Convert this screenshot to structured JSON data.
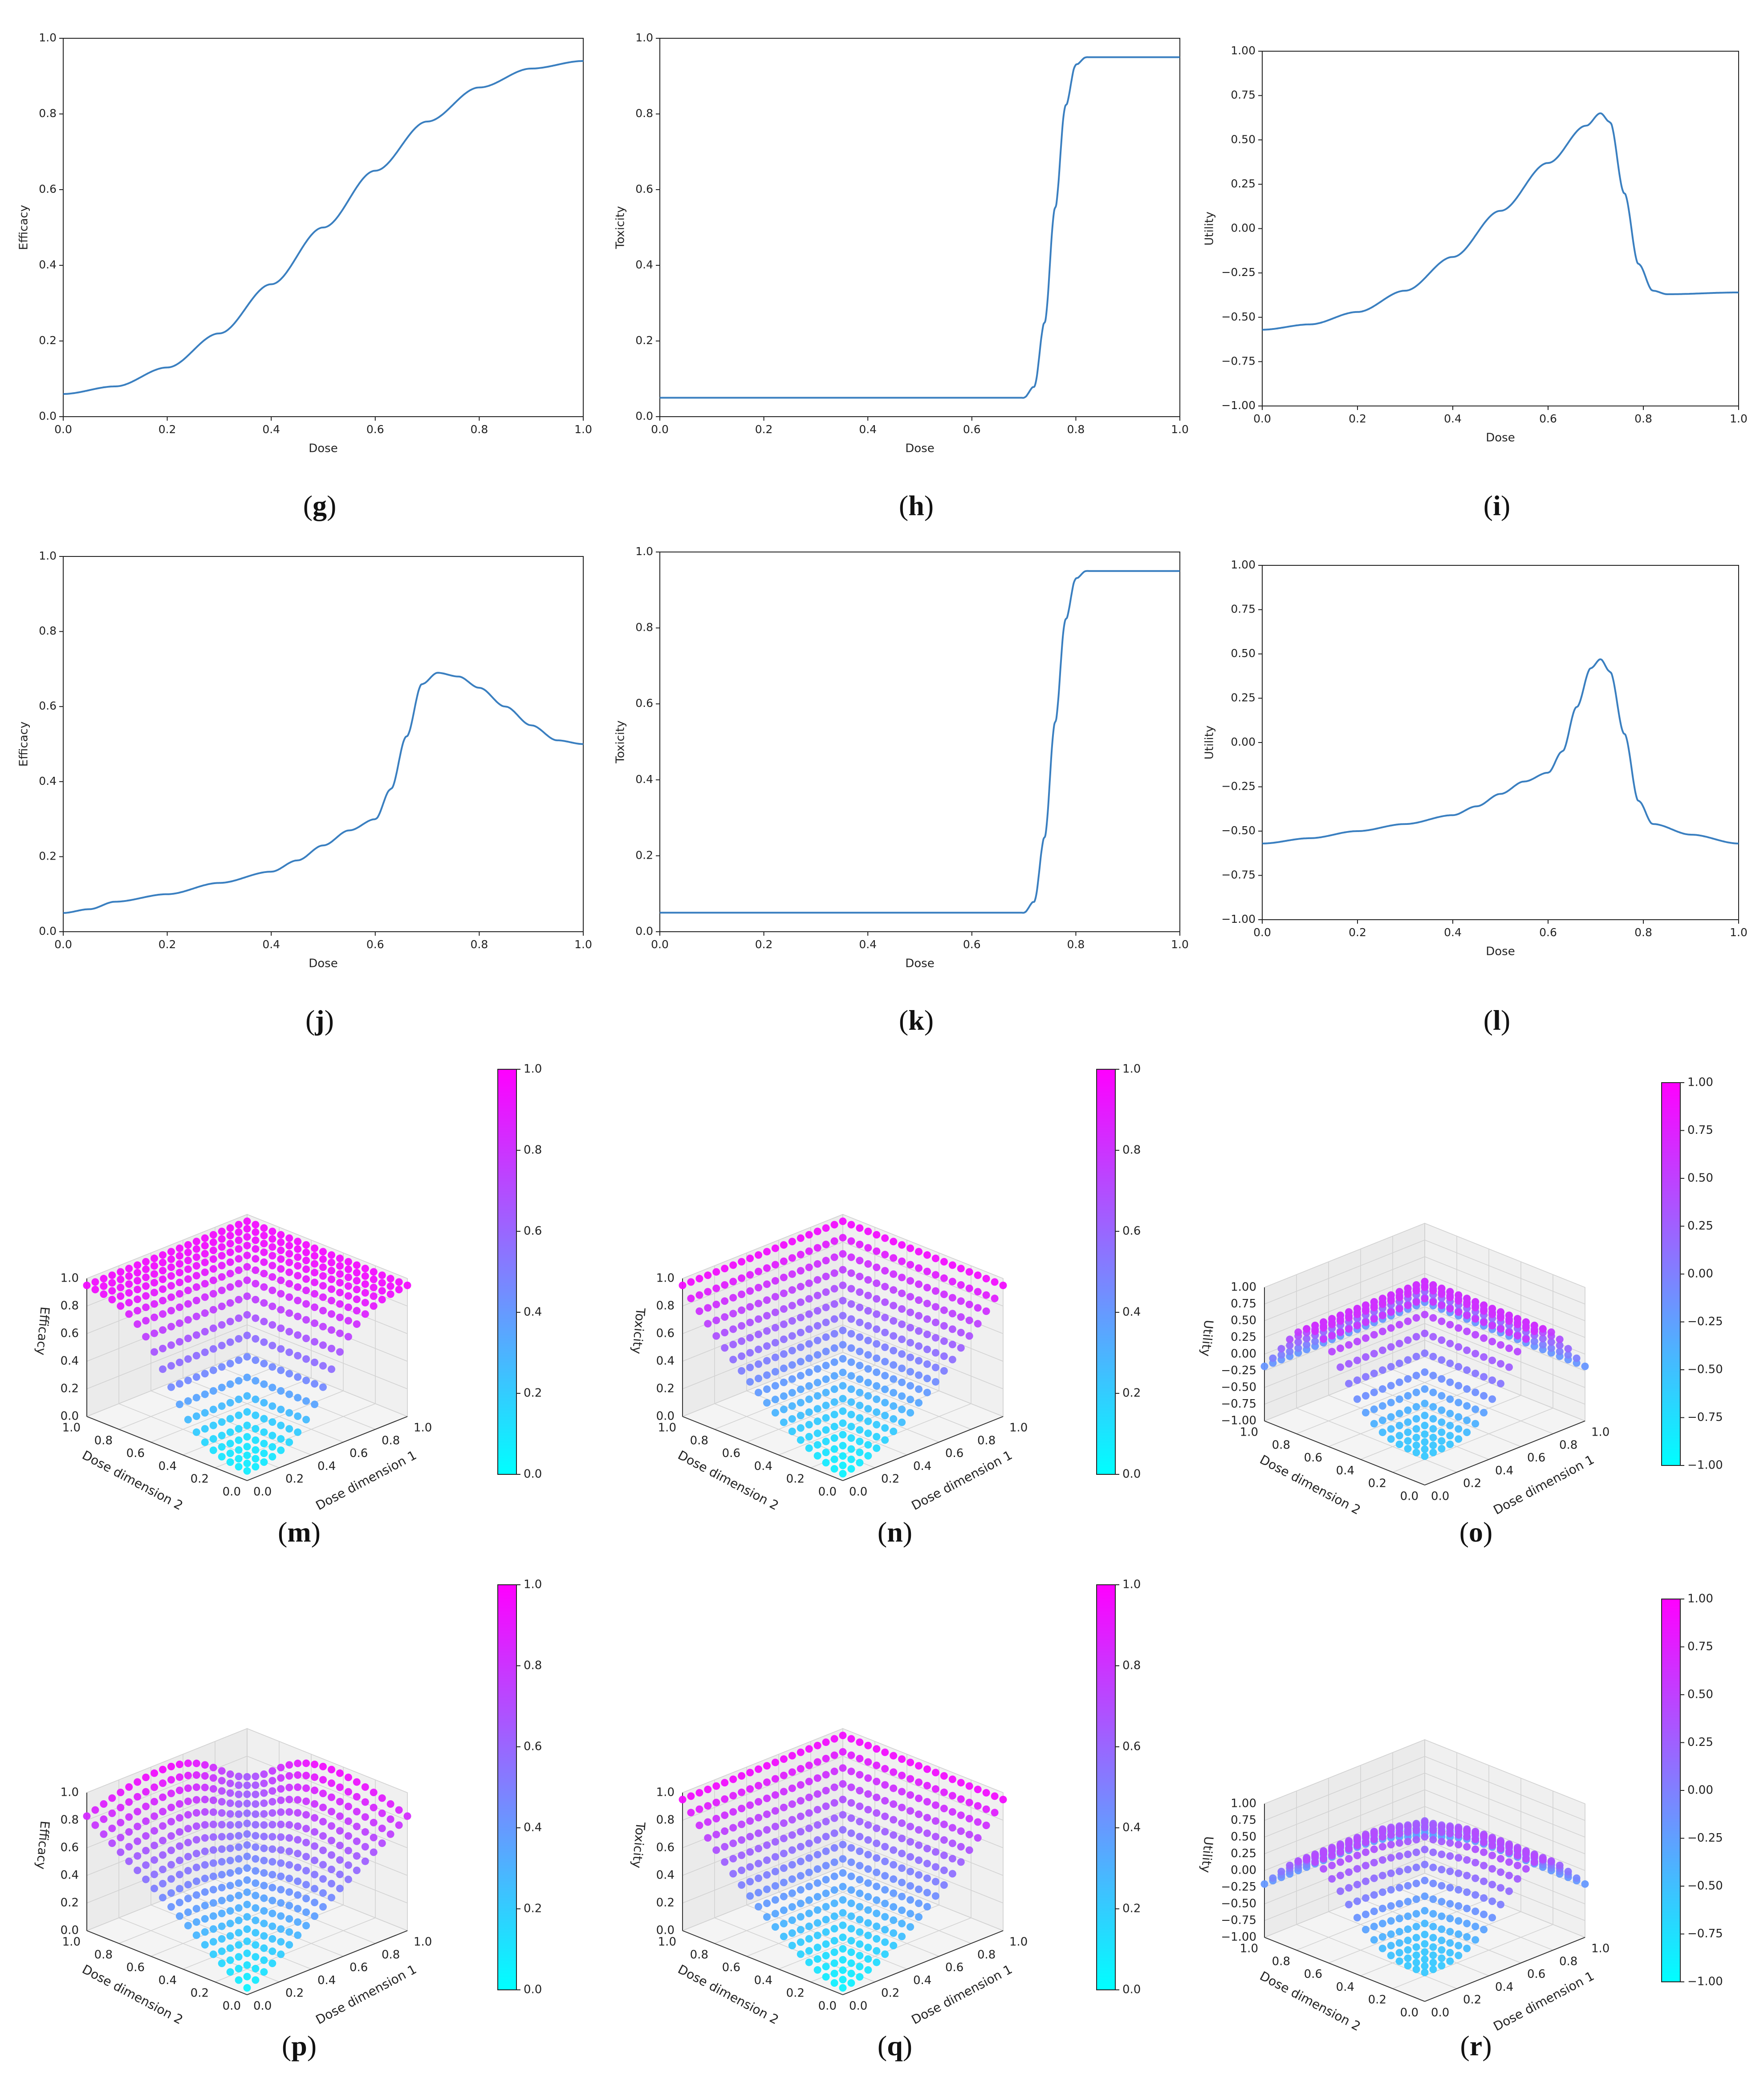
{
  "figure": {
    "panels_2d": [
      {
        "id": "g",
        "caption": "g",
        "type": "line",
        "xlabel": "Dose",
        "ylabel": "Efficacy",
        "xlim": [
          0,
          1
        ],
        "ylim": [
          0,
          1
        ],
        "xticks": [
          "0.0",
          "0.2",
          "0.4",
          "0.6",
          "0.8",
          "1.0"
        ],
        "yticks": [
          "0.0",
          "0.2",
          "0.4",
          "0.6",
          "0.8",
          "1.0"
        ]
      },
      {
        "id": "h",
        "caption": "h",
        "type": "line",
        "xlabel": "Dose",
        "ylabel": "Toxicity",
        "xlim": [
          0,
          1
        ],
        "ylim": [
          0,
          1
        ],
        "xticks": [
          "0.0",
          "0.2",
          "0.4",
          "0.6",
          "0.8",
          "1.0"
        ],
        "yticks": [
          "0.0",
          "0.2",
          "0.4",
          "0.6",
          "0.8",
          "1.0"
        ]
      },
      {
        "id": "i",
        "caption": "i",
        "type": "line",
        "xlabel": "Dose",
        "ylabel": "Utility",
        "xlim": [
          0,
          1
        ],
        "ylim": [
          -1,
          1
        ],
        "xticks": [
          "0.0",
          "0.2",
          "0.4",
          "0.6",
          "0.8",
          "1.0"
        ],
        "yticks": [
          "−1.00",
          "−0.75",
          "−0.50",
          "−0.25",
          "0.00",
          "0.25",
          "0.50",
          "0.75",
          "1.00"
        ]
      },
      {
        "id": "j",
        "caption": "j",
        "type": "line",
        "xlabel": "Dose",
        "ylabel": "Efficacy",
        "xlim": [
          0,
          1
        ],
        "ylim": [
          0,
          1
        ],
        "xticks": [
          "0.0",
          "0.2",
          "0.4",
          "0.6",
          "0.8",
          "1.0"
        ],
        "yticks": [
          "0.0",
          "0.2",
          "0.4",
          "0.6",
          "0.8",
          "1.0"
        ]
      },
      {
        "id": "k",
        "caption": "k",
        "type": "line",
        "xlabel": "Dose",
        "ylabel": "Toxicity",
        "xlim": [
          0,
          1
        ],
        "ylim": [
          0,
          1
        ],
        "xticks": [
          "0.0",
          "0.2",
          "0.4",
          "0.6",
          "0.8",
          "1.0"
        ],
        "yticks": [
          "0.0",
          "0.2",
          "0.4",
          "0.6",
          "0.8",
          "1.0"
        ]
      },
      {
        "id": "l",
        "caption": "l",
        "type": "line",
        "xlabel": "Dose",
        "ylabel": "Utility",
        "xlim": [
          0,
          1
        ],
        "ylim": [
          -1,
          1
        ],
        "xticks": [
          "0.0",
          "0.2",
          "0.4",
          "0.6",
          "0.8",
          "1.0"
        ],
        "yticks": [
          "−1.00",
          "−0.75",
          "−0.50",
          "−0.25",
          "0.00",
          "0.25",
          "0.50",
          "0.75",
          "1.00"
        ]
      }
    ],
    "panels_3d": [
      {
        "id": "m",
        "caption": "m",
        "zlabel": "Efficacy",
        "x1label": "Dose dimension 1",
        "x2label": "Dose dimension 2",
        "zticks": [
          "0.0",
          "0.2",
          "0.4",
          "0.6",
          "0.8",
          "1.0"
        ],
        "dticks": [
          "0.0",
          "0.2",
          "0.4",
          "0.6",
          "0.8",
          "1.0"
        ],
        "cbar_ticks": [
          "0.0",
          "0.2",
          "0.4",
          "0.6",
          "0.8",
          "1.0"
        ]
      },
      {
        "id": "n",
        "caption": "n",
        "zlabel": "Toxicity",
        "x1label": "Dose dimension 1",
        "x2label": "Dose dimension 2",
        "zticks": [
          "0.0",
          "0.2",
          "0.4",
          "0.6",
          "0.8",
          "1.0"
        ],
        "dticks": [
          "0.0",
          "0.2",
          "0.4",
          "0.6",
          "0.8",
          "1.0"
        ],
        "cbar_ticks": [
          "0.0",
          "0.2",
          "0.4",
          "0.6",
          "0.8",
          "1.0"
        ]
      },
      {
        "id": "o",
        "caption": "o",
        "zlabel": "Utility",
        "x1label": "Dose dimension 1",
        "x2label": "Dose dimension 2",
        "zticks": [
          "−1.00",
          "−0.75",
          "−0.50",
          "−0.25",
          "0.00",
          "0.25",
          "0.50",
          "0.75",
          "1.00"
        ],
        "dticks": [
          "0.0",
          "0.2",
          "0.4",
          "0.6",
          "0.8",
          "1.0"
        ],
        "cbar_ticks": [
          "−1.00",
          "−0.75",
          "−0.50",
          "−0.25",
          "0.00",
          "0.25",
          "0.50",
          "0.75",
          "1.00"
        ]
      },
      {
        "id": "p",
        "caption": "p",
        "zlabel": "Efficacy",
        "x1label": "Dose dimension 1",
        "x2label": "Dose dimension 2",
        "zticks": [
          "0.0",
          "0.2",
          "0.4",
          "0.6",
          "0.8",
          "1.0"
        ],
        "dticks": [
          "0.0",
          "0.2",
          "0.4",
          "0.6",
          "0.8",
          "1.0"
        ],
        "cbar_ticks": [
          "0.0",
          "0.2",
          "0.4",
          "0.6",
          "0.8",
          "1.0"
        ]
      },
      {
        "id": "q",
        "caption": "q",
        "zlabel": "Toxicity",
        "x1label": "Dose dimension 1",
        "x2label": "Dose dimension 2",
        "zticks": [
          "0.0",
          "0.2",
          "0.4",
          "0.6",
          "0.8",
          "1.0"
        ],
        "dticks": [
          "0.0",
          "0.2",
          "0.4",
          "0.6",
          "0.8",
          "1.0"
        ],
        "cbar_ticks": [
          "0.0",
          "0.2",
          "0.4",
          "0.6",
          "0.8",
          "1.0"
        ]
      },
      {
        "id": "r",
        "caption": "r",
        "zlabel": "Utility",
        "x1label": "Dose dimension 1",
        "x2label": "Dose dimension 2",
        "zticks": [
          "−1.00",
          "−0.75",
          "−0.50",
          "−0.25",
          "0.00",
          "0.25",
          "0.50",
          "0.75",
          "1.00"
        ],
        "dticks": [
          "0.0",
          "0.2",
          "0.4",
          "0.6",
          "0.8",
          "1.0"
        ],
        "cbar_ticks": [
          "−1.00",
          "−0.75",
          "−0.50",
          "−0.25",
          "0.00",
          "0.25",
          "0.50",
          "0.75",
          "1.00"
        ]
      }
    ],
    "colors": {
      "line": "#3a7fc0",
      "cmap_low": "#00ffff",
      "cmap_high": "#ff00ff",
      "axis": "#222222"
    }
  },
  "chart_data": [
    {
      "panel": "g",
      "type": "line",
      "title": "",
      "xlabel": "Dose",
      "ylabel": "Efficacy",
      "ylim": [
        0,
        1
      ],
      "x": [
        0.0,
        0.1,
        0.2,
        0.3,
        0.4,
        0.5,
        0.6,
        0.7,
        0.8,
        0.9,
        1.0
      ],
      "y": [
        0.06,
        0.08,
        0.13,
        0.22,
        0.35,
        0.5,
        0.65,
        0.78,
        0.87,
        0.92,
        0.94
      ]
    },
    {
      "panel": "h",
      "type": "line",
      "title": "",
      "xlabel": "Dose",
      "ylabel": "Toxicity",
      "ylim": [
        0,
        1
      ],
      "x": [
        0.0,
        0.2,
        0.4,
        0.6,
        0.7,
        0.72,
        0.74,
        0.76,
        0.78,
        0.8,
        0.82,
        0.85,
        1.0
      ],
      "y": [
        0.05,
        0.05,
        0.05,
        0.05,
        0.05,
        0.08,
        0.25,
        0.55,
        0.82,
        0.93,
        0.95,
        0.95,
        0.95
      ]
    },
    {
      "panel": "i",
      "type": "line",
      "title": "",
      "xlabel": "Dose",
      "ylabel": "Utility",
      "ylim": [
        -1,
        1
      ],
      "x": [
        0.0,
        0.1,
        0.2,
        0.3,
        0.4,
        0.5,
        0.6,
        0.68,
        0.71,
        0.73,
        0.76,
        0.79,
        0.82,
        0.85,
        1.0
      ],
      "y": [
        -0.57,
        -0.54,
        -0.47,
        -0.35,
        -0.16,
        0.1,
        0.37,
        0.58,
        0.65,
        0.6,
        0.2,
        -0.2,
        -0.35,
        -0.37,
        -0.36
      ]
    },
    {
      "panel": "j",
      "type": "line",
      "title": "",
      "xlabel": "Dose",
      "ylabel": "Efficacy",
      "ylim": [
        0,
        1
      ],
      "x": [
        0.0,
        0.05,
        0.1,
        0.2,
        0.3,
        0.4,
        0.45,
        0.5,
        0.55,
        0.6,
        0.63,
        0.66,
        0.69,
        0.72,
        0.76,
        0.8,
        0.85,
        0.9,
        0.95,
        1.0
      ],
      "y": [
        0.05,
        0.06,
        0.08,
        0.1,
        0.13,
        0.16,
        0.19,
        0.23,
        0.27,
        0.3,
        0.38,
        0.52,
        0.66,
        0.69,
        0.68,
        0.65,
        0.6,
        0.55,
        0.51,
        0.5
      ]
    },
    {
      "panel": "k",
      "type": "line",
      "title": "",
      "xlabel": "Dose",
      "ylabel": "Toxicity",
      "ylim": [
        0,
        1
      ],
      "x": [
        0.0,
        0.2,
        0.4,
        0.6,
        0.7,
        0.72,
        0.74,
        0.76,
        0.78,
        0.8,
        0.82,
        0.85,
        1.0
      ],
      "y": [
        0.05,
        0.05,
        0.05,
        0.05,
        0.05,
        0.08,
        0.25,
        0.55,
        0.82,
        0.93,
        0.95,
        0.95,
        0.95
      ]
    },
    {
      "panel": "l",
      "type": "line",
      "title": "",
      "xlabel": "Dose",
      "ylabel": "Utility",
      "ylim": [
        -1,
        1
      ],
      "x": [
        0.0,
        0.1,
        0.2,
        0.3,
        0.4,
        0.45,
        0.5,
        0.55,
        0.6,
        0.63,
        0.66,
        0.69,
        0.71,
        0.73,
        0.76,
        0.79,
        0.82,
        0.9,
        1.0
      ],
      "y": [
        -0.57,
        -0.54,
        -0.5,
        -0.46,
        -0.41,
        -0.36,
        -0.29,
        -0.22,
        -0.17,
        -0.05,
        0.2,
        0.42,
        0.47,
        0.4,
        0.05,
        -0.33,
        -0.46,
        -0.52,
        -0.57
      ]
    },
    {
      "panel": "m",
      "type": "scatter3d",
      "title": "",
      "zlabel": "Efficacy",
      "xlabel": "Dose dimension 1",
      "ylabel": "Dose dimension 2",
      "grid": 20,
      "zlim": [
        0,
        1
      ],
      "surface": "0.06 + 0.90 * sigmoid(9*(max(d1,d2) - 0.5))",
      "value_range": [
        0.06,
        0.96
      ]
    },
    {
      "panel": "n",
      "type": "scatter3d",
      "title": "",
      "zlabel": "Toxicity",
      "xlabel": "Dose dimension 1",
      "ylabel": "Dose dimension 2",
      "grid": 20,
      "zlim": [
        0,
        1
      ],
      "surface": "0.05 + 0.90 * max(d1,d2)^1.5",
      "value_range": [
        0.05,
        0.95
      ]
    },
    {
      "panel": "o",
      "type": "scatter3d",
      "title": "",
      "zlabel": "Utility",
      "xlabel": "Dose dimension 1",
      "ylabel": "Dose dimension 2",
      "grid": 20,
      "zlim": [
        -1,
        1
      ],
      "surface": "peak near max(d1,d2)=0.7",
      "value_range": [
        -0.57,
        0.65
      ]
    },
    {
      "panel": "p",
      "type": "scatter3d",
      "title": "",
      "zlabel": "Efficacy",
      "xlabel": "Dose dimension 1",
      "ylabel": "Dose dimension 2",
      "grid": 20,
      "zlim": [
        0,
        1
      ],
      "surface": "rises to ~0.85 with peaks near max(d1,d2)=0.7",
      "value_range": [
        0.05,
        0.87
      ]
    },
    {
      "panel": "q",
      "type": "scatter3d",
      "title": "",
      "zlabel": "Toxicity",
      "xlabel": "Dose dimension 1",
      "ylabel": "Dose dimension 2",
      "grid": 20,
      "zlim": [
        0,
        1
      ],
      "surface": "0.05 + 0.90 * max(d1,d2)^1.5",
      "value_range": [
        0.05,
        0.95
      ]
    },
    {
      "panel": "r",
      "type": "scatter3d",
      "title": "",
      "zlabel": "Utility",
      "xlabel": "Dose dimension 1",
      "ylabel": "Dose dimension 2",
      "grid": 20,
      "zlim": [
        -1,
        1
      ],
      "surface": "peak near max(d1,d2)=0.7, dips at far corner",
      "value_range": [
        -0.57,
        0.47
      ]
    }
  ]
}
